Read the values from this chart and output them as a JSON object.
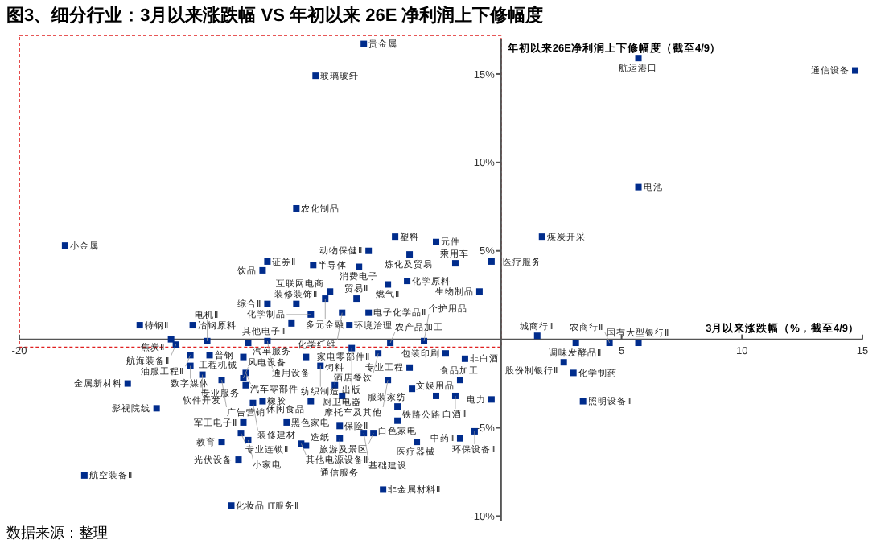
{
  "chart_data": {
    "type": "scatter",
    "title": "图3、细分行业：3月以来涨跌幅 VS 年初以来 26E 净利润上下修幅度",
    "xlabel": "3月以来涨跌幅（%，截至4/9）",
    "ylabel": "年初以来26E净利润上下修幅度（截至4/9）",
    "xlim": [
      -20,
      15
    ],
    "ylim": [
      -10.3,
      17
    ],
    "xticks": [
      -20,
      5,
      10,
      15
    ],
    "yticks": [
      {
        "value": -10,
        "label": "-10%"
      },
      {
        "value": -5,
        "label": "-5%"
      },
      {
        "value": 5,
        "label": "5%"
      },
      {
        "value": 10,
        "label": "10%"
      },
      {
        "value": 15,
        "label": "15%"
      }
    ],
    "marker": "square",
    "grid": false,
    "series": [
      {
        "color": "#002c8c",
        "x": [
          -18.1,
          -9.7,
          -9.9,
          -8.5,
          -5.7,
          -7.7,
          -4.4,
          -5.5,
          -3.8,
          -2.7,
          -7.8,
          -5.9,
          -1.9,
          -0.4,
          -4.7,
          -3.9,
          -0.9,
          1.7,
          5.7,
          14.7,
          5.7,
          -7.1,
          -7.3,
          -6.0,
          -9.7,
          -8.5,
          -7.9,
          -8.7,
          -15.0,
          -12.8,
          -13.7,
          -12.2,
          -13.5,
          -12.9,
          -12.1,
          -10.5,
          -9.7,
          -12.9,
          -10.7,
          -8.1,
          -10.6,
          -15.5,
          -12.4,
          -11.6,
          -10.7,
          -10.6,
          -10.3,
          -9.9,
          -14.3,
          -10.7,
          -8.9,
          -10.8,
          -10.5,
          -8.3,
          -11.6,
          -10.9,
          -17.3,
          -11.2,
          -6.3,
          -5.5,
          -6.6,
          -4.6,
          -3.2,
          -2.3,
          -1.5,
          1.5,
          5.7,
          4.5,
          3.1,
          2.6,
          3.0,
          3.4,
          -1.7,
          -0.4,
          -1.9,
          -2.7,
          -3.7,
          -3.8,
          -5.1,
          -4.7,
          -7.5,
          -6.2,
          -6.6,
          -6.9,
          -7.9,
          -4.3,
          -4.3,
          -1.1,
          -1.7,
          -3.5,
          -5.3,
          -6.7,
          -8.1,
          -4.9,
          -6.7,
          -5.7
        ],
        "values": [
          5.3,
          4.4,
          3.9,
          7.4,
          16.7,
          14.9,
          5.8,
          5.0,
          4.8,
          5.5,
          4.2,
          4.1,
          4.3,
          4.4,
          3.1,
          3.3,
          2.7,
          5.8,
          15.9,
          15.2,
          8.6,
          2.7,
          2.3,
          2.3,
          2.0,
          2.0,
          1.4,
          0.9,
          0.8,
          0.8,
          0.0,
          -0.1,
          -0.3,
          -0.9,
          -0.9,
          -0.2,
          -0.1,
          -1.5,
          -1.0,
          -1.0,
          -1.9,
          -2.5,
          -2.0,
          -2.3,
          -2.2,
          -2.6,
          -3.6,
          -3.5,
          -3.9,
          -4.7,
          -4.7,
          -5.3,
          -5.7,
          -5.9,
          -5.8,
          -6.8,
          -7.7,
          -9.4,
          0.8,
          1.5,
          1.5,
          -0.2,
          -0.1,
          -0.8,
          -1.1,
          0.2,
          -0.2,
          -0.2,
          -0.2,
          -1.3,
          -1.9,
          -3.5,
          -2.3,
          -3.4,
          -3.2,
          -3.2,
          -2.8,
          -1.6,
          -0.8,
          -2.3,
          -1.5,
          -0.5,
          -3.2,
          -2.6,
          -3.5,
          -3.8,
          -4.6,
          -5.2,
          -5.6,
          -5.8,
          -5.3,
          -5.6,
          -6.0,
          -8.5,
          -4.9,
          -5.3
        ]
      }
    ],
    "annotations": [
      {
        "text": "小金属",
        "x": -18.1,
        "y": 5.3
      },
      {
        "text": "证券Ⅱ",
        "x": -9.7,
        "y": 4.4
      },
      {
        "text": "饮品",
        "x": -9.9,
        "y": 3.9
      },
      {
        "text": "农化制品",
        "x": -8.5,
        "y": 7.4
      },
      {
        "text": "贵金属",
        "x": -5.7,
        "y": 16.7
      },
      {
        "text": "玻璃玻纤",
        "x": -7.7,
        "y": 14.9
      },
      {
        "text": "塑料",
        "x": -4.4,
        "y": 5.8
      },
      {
        "text": "动物保健Ⅱ",
        "x": -5.5,
        "y": 5.0
      },
      {
        "text": "炼化及贸易",
        "x": -3.8,
        "y": 4.8
      },
      {
        "text": "元件",
        "x": -2.7,
        "y": 5.5
      },
      {
        "text": "半导体",
        "x": -7.8,
        "y": 4.2
      },
      {
        "text": "消费电子",
        "x": -5.9,
        "y": 4.1
      },
      {
        "text": "乘用车",
        "x": -1.9,
        "y": 4.3
      },
      {
        "text": "医疗服务",
        "x": -0.4,
        "y": 4.4
      },
      {
        "text": "燃气Ⅱ",
        "x": -4.7,
        "y": 3.1
      },
      {
        "text": "化学原料",
        "x": -3.9,
        "y": 3.3
      },
      {
        "text": "生物制品",
        "x": -0.9,
        "y": 2.7
      },
      {
        "text": "煤炭开采",
        "x": 1.7,
        "y": 5.8
      },
      {
        "text": "航运港口",
        "x": 5.7,
        "y": 15.9
      },
      {
        "text": "通信设备",
        "x": 14.7,
        "y": 15.2
      },
      {
        "text": "电池",
        "x": 5.7,
        "y": 8.6
      },
      {
        "text": "互联网电商",
        "x": -7.1,
        "y": 2.7
      },
      {
        "text": "多元金融",
        "x": -7.3,
        "y": 2.3
      },
      {
        "text": "贸易Ⅱ",
        "x": -6.0,
        "y": 2.3
      },
      {
        "text": "综合Ⅱ",
        "x": -9.7,
        "y": 2.0
      },
      {
        "text": "装修装饰Ⅱ",
        "x": -8.5,
        "y": 2.0
      },
      {
        "text": "化学制品",
        "x": -7.9,
        "y": 1.4
      },
      {
        "text": "其他电子Ⅱ",
        "x": -8.7,
        "y": 0.9
      },
      {
        "text": "特钢Ⅱ",
        "x": -15.0,
        "y": 0.8
      },
      {
        "text": "冶钢原料",
        "x": -12.8,
        "y": 0.8
      },
      {
        "text": "焦炭Ⅱ",
        "x": -13.7,
        "y": 0.0
      },
      {
        "text": "电机Ⅱ",
        "x": -12.2,
        "y": -0.1
      },
      {
        "text": "航海装备Ⅱ",
        "x": -13.5,
        "y": -0.3
      },
      {
        "text": "油服工程Ⅱ",
        "x": -12.9,
        "y": -0.9
      },
      {
        "text": "普钢",
        "x": -12.1,
        "y": -0.9
      },
      {
        "text": "汽车服务",
        "x": -10.5,
        "y": -0.2
      },
      {
        "text": "通用设备",
        "x": -9.7,
        "y": -0.1
      },
      {
        "text": "数字媒体",
        "x": -12.9,
        "y": -1.5
      },
      {
        "text": "工程机械",
        "x": -10.7,
        "y": -1.0
      },
      {
        "text": "家电零部件Ⅱ",
        "x": -8.1,
        "y": -1.0
      },
      {
        "text": "汽车零部件",
        "x": -10.6,
        "y": -1.9
      },
      {
        "text": "金属新材料",
        "x": -15.5,
        "y": -2.5
      },
      {
        "text": "软件开发",
        "x": -12.4,
        "y": -2.0
      },
      {
        "text": "广告营销",
        "x": -11.6,
        "y": -2.3
      },
      {
        "text": "风电设备",
        "x": -10.7,
        "y": -2.2
      },
      {
        "text": "专业服务",
        "x": -10.6,
        "y": -2.6
      },
      {
        "text": "装修建材",
        "x": -10.3,
        "y": -3.6
      },
      {
        "text": "橡胶",
        "x": -9.9,
        "y": -3.5
      },
      {
        "text": "影视院线",
        "x": -14.3,
        "y": -3.9
      },
      {
        "text": "军工电子Ⅱ",
        "x": -10.7,
        "y": -4.7
      },
      {
        "text": "黑色家电",
        "x": -8.9,
        "y": -4.7
      },
      {
        "text": "专业连锁Ⅱ",
        "x": -10.8,
        "y": -5.3
      },
      {
        "text": "小家电",
        "x": -10.5,
        "y": -5.7
      },
      {
        "text": "其他电源设备Ⅱ",
        "x": -8.3,
        "y": -5.9
      },
      {
        "text": "教育",
        "x": -11.6,
        "y": -5.8
      },
      {
        "text": "光伏设备",
        "x": -10.9,
        "y": -6.8
      },
      {
        "text": "航空装备Ⅱ",
        "x": -17.3,
        "y": -7.7
      },
      {
        "text": "化妆品 IT服务Ⅱ",
        "x": -11.2,
        "y": -9.4
      },
      {
        "text": "环境治理",
        "x": -6.3,
        "y": 0.8
      },
      {
        "text": "电子化学品Ⅱ",
        "x": -5.5,
        "y": 1.5
      },
      {
        "text": "化学纤维",
        "x": -6.6,
        "y": 1.5
      },
      {
        "text": "农产品加工",
        "x": -4.6,
        "y": -0.2
      },
      {
        "text": "个护用品",
        "x": -3.2,
        "y": -0.1
      },
      {
        "text": "包装印刷",
        "x": -2.3,
        "y": -0.8
      },
      {
        "text": "非白酒",
        "x": -1.5,
        "y": -1.1
      },
      {
        "text": "城商行Ⅱ",
        "x": 1.5,
        "y": 0.2
      },
      {
        "text": "国有大型银行Ⅱ",
        "x": 5.7,
        "y": -0.2
      },
      {
        "text": "农商行Ⅱ",
        "x": 4.5,
        "y": -0.2
      },
      {
        "text": "调味发酵品Ⅱ",
        "x": 3.1,
        "y": -0.2
      },
      {
        "text": "股份制银行Ⅱ",
        "x": 2.6,
        "y": -1.3
      },
      {
        "text": "化学制药",
        "x": 3.0,
        "y": -1.9
      },
      {
        "text": "照明设备Ⅱ",
        "x": 3.4,
        "y": -3.5
      },
      {
        "text": "食品加工",
        "x": -1.7,
        "y": -2.3
      },
      {
        "text": "电力",
        "x": -0.4,
        "y": -3.4
      },
      {
        "text": "白酒Ⅱ",
        "x": -1.9,
        "y": -3.2
      },
      {
        "text": "文娱用品",
        "x": -2.7,
        "y": -3.2
      },
      {
        "text": "服装家纺",
        "x": -3.7,
        "y": -2.8
      },
      {
        "text": "专业工程",
        "x": -3.8,
        "y": -1.6
      },
      {
        "text": "酒店餐饮",
        "x": -5.1,
        "y": -0.8
      },
      {
        "text": "摩托车及其他",
        "x": -4.7,
        "y": -2.3
      },
      {
        "text": "纺织制造",
        "x": -7.5,
        "y": -1.5
      },
      {
        "text": "出版",
        "x": -6.2,
        "y": -0.5
      },
      {
        "text": "厨卫电器",
        "x": -6.6,
        "y": -3.2
      },
      {
        "text": "饲料",
        "x": -6.9,
        "y": -2.6
      },
      {
        "text": "休闲食品",
        "x": -7.9,
        "y": -3.5
      },
      {
        "text": "铁路公路",
        "x": -4.3,
        "y": -3.8
      },
      {
        "text": "白色家电",
        "x": -4.3,
        "y": -4.6
      },
      {
        "text": "环保设备Ⅱ",
        "x": -1.1,
        "y": -5.2
      },
      {
        "text": "中药Ⅱ",
        "x": -1.7,
        "y": -5.6
      },
      {
        "text": "医疗器械",
        "x": -3.5,
        "y": -5.8
      },
      {
        "text": "旅游及景区",
        "x": -5.3,
        "y": -5.3
      },
      {
        "text": "通信服务",
        "x": -6.7,
        "y": -5.6
      },
      {
        "text": "造纸",
        "x": -8.1,
        "y": -6.0
      },
      {
        "text": "非金属材料Ⅱ",
        "x": -4.9,
        "y": -8.5
      },
      {
        "text": "保险Ⅱ",
        "x": -6.7,
        "y": -4.9
      },
      {
        "text": "基础建设",
        "x": -5.7,
        "y": -5.3
      },
      "数据来源：整理"
    ]
  }
}
